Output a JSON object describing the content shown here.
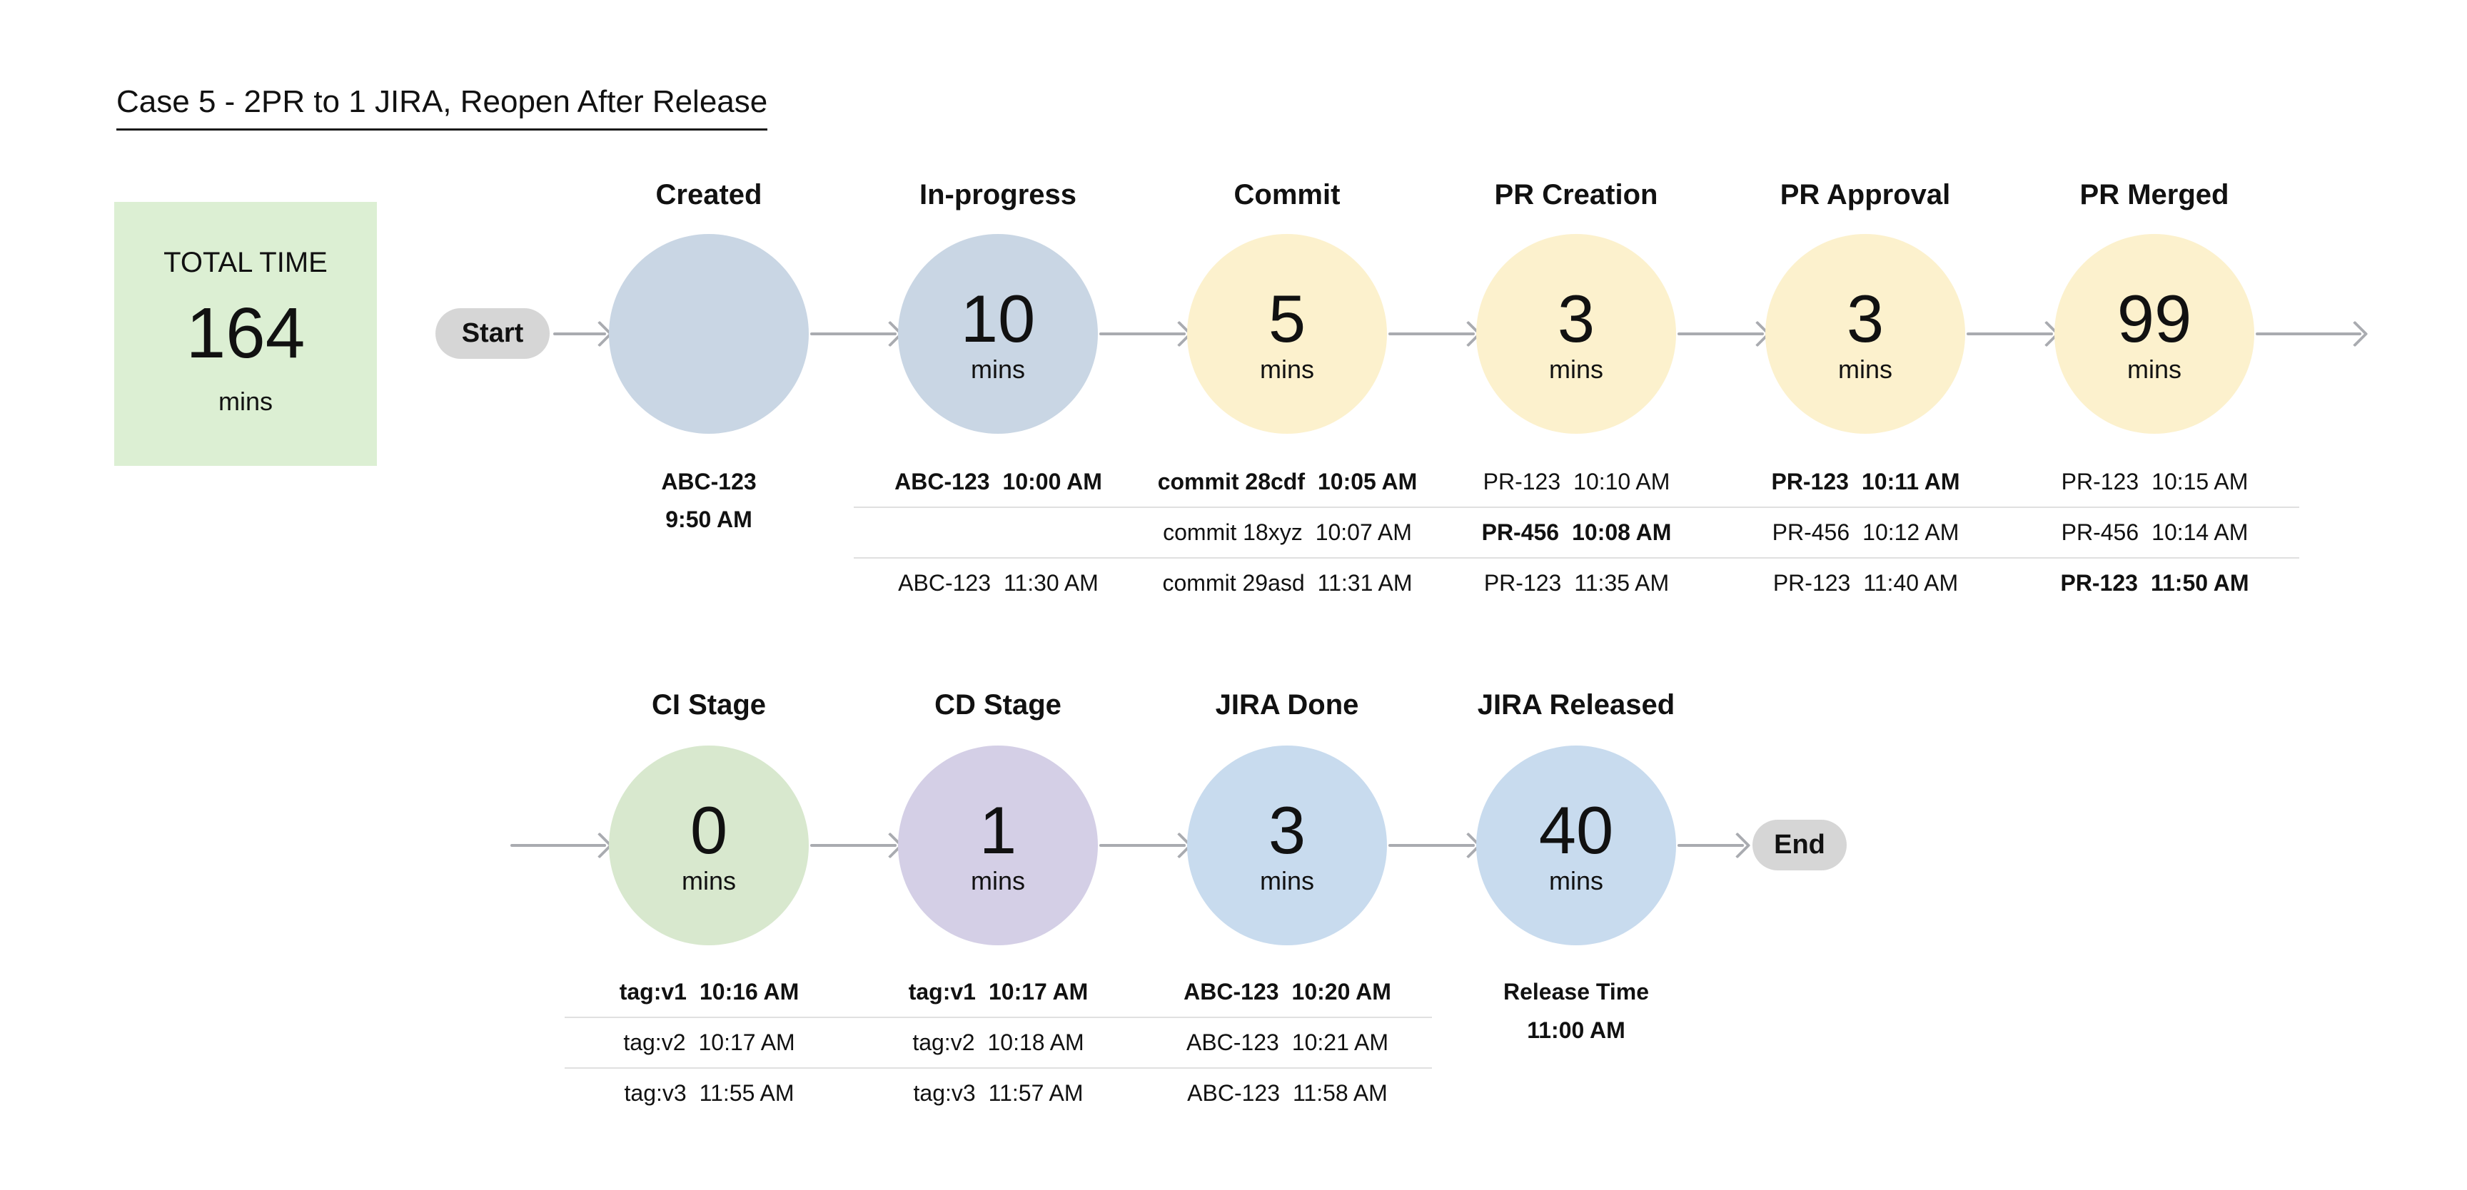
{
  "title": "Case 5 - 2PR to 1 JIRA, Reopen After Release",
  "total_time": {
    "label": "TOTAL TIME",
    "value": "164",
    "unit": "mins"
  },
  "palette": {
    "blue_gray": "#c9d6e4",
    "yellow": "#fcf1cd",
    "green": "#d8e8ce",
    "purple": "#d4cfe6",
    "blue": "#c8dbee",
    "total_box_green": "#dcefd3",
    "pill_gray": "#d6d6d6",
    "arrow_gray": "#a9abb0",
    "separator_gray": "#e0e0e0",
    "text": "#111111"
  },
  "flow": {
    "start_label": "Start",
    "end_label": "End",
    "rows": [
      {
        "stages": [
          {
            "name": "Created",
            "minutes": "",
            "unit": "",
            "color": "blue_gray",
            "info": [
              {
                "text": "ABC-123",
                "bold": true
              },
              {
                "text": "9:50 AM",
                "bold": true
              }
            ]
          },
          {
            "name": "In-progress",
            "minutes": "10",
            "unit": "mins",
            "color": "blue_gray",
            "entries": [
              {
                "id": "ABC-123",
                "time": "10:00 AM",
                "bold": true
              },
              {
                "id": "",
                "time": "",
                "bold": false
              },
              {
                "id": "ABC-123",
                "time": "11:30 AM",
                "bold": false
              }
            ]
          },
          {
            "name": "Commit",
            "minutes": "5",
            "unit": "mins",
            "color": "yellow",
            "entries": [
              {
                "id": "commit 28cdf",
                "time": "10:05 AM",
                "bold": true
              },
              {
                "id": "commit 18xyz",
                "time": "10:07 AM",
                "bold": false
              },
              {
                "id": "commit 29asd",
                "time": "11:31 AM",
                "bold": false
              }
            ]
          },
          {
            "name": "PR Creation",
            "minutes": "3",
            "unit": "mins",
            "color": "yellow",
            "entries": [
              {
                "id": "PR-123",
                "time": "10:10 AM",
                "bold": false
              },
              {
                "id": "PR-456",
                "time": "10:08 AM",
                "bold": true
              },
              {
                "id": "PR-123",
                "time": "11:35 AM",
                "bold": false
              }
            ]
          },
          {
            "name": "PR Approval",
            "minutes": "3",
            "unit": "mins",
            "color": "yellow",
            "entries": [
              {
                "id": "PR-123",
                "time": "10:11 AM",
                "bold": true
              },
              {
                "id": "PR-456",
                "time": "10:12 AM",
                "bold": false
              },
              {
                "id": "PR-123",
                "time": "11:40 AM",
                "bold": false
              }
            ]
          },
          {
            "name": "PR Merged",
            "minutes": "99",
            "unit": "mins",
            "color": "yellow",
            "entries": [
              {
                "id": "PR-123",
                "time": "10:15 AM",
                "bold": false
              },
              {
                "id": "PR-456",
                "time": "10:14 AM",
                "bold": false
              },
              {
                "id": "PR-123",
                "time": "11:50 AM",
                "bold": true
              }
            ]
          }
        ]
      },
      {
        "stages": [
          {
            "name": "CI Stage",
            "minutes": "0",
            "unit": "mins",
            "color": "green",
            "entries": [
              {
                "id": "tag:v1",
                "time": "10:16 AM",
                "bold": true
              },
              {
                "id": "tag:v2",
                "time": "10:17 AM",
                "bold": false
              },
              {
                "id": "tag:v3",
                "time": "11:55 AM",
                "bold": false
              }
            ]
          },
          {
            "name": "CD Stage",
            "minutes": "1",
            "unit": "mins",
            "color": "purple",
            "entries": [
              {
                "id": "tag:v1",
                "time": "10:17 AM",
                "bold": true
              },
              {
                "id": "tag:v2",
                "time": "10:18 AM",
                "bold": false
              },
              {
                "id": "tag:v3",
                "time": "11:57 AM",
                "bold": false
              }
            ]
          },
          {
            "name": "JIRA Done",
            "minutes": "3",
            "unit": "mins",
            "color": "blue",
            "entries": [
              {
                "id": "ABC-123",
                "time": "10:20 AM",
                "bold": true
              },
              {
                "id": "ABC-123",
                "time": "10:21 AM",
                "bold": false
              },
              {
                "id": "ABC-123",
                "time": "11:58 AM",
                "bold": false
              }
            ]
          },
          {
            "name": "JIRA Released",
            "minutes": "40",
            "unit": "mins",
            "color": "blue",
            "info": [
              {
                "text": "Release Time",
                "bold": true
              },
              {
                "text": "11:00 AM",
                "bold": true
              }
            ]
          }
        ]
      }
    ]
  }
}
